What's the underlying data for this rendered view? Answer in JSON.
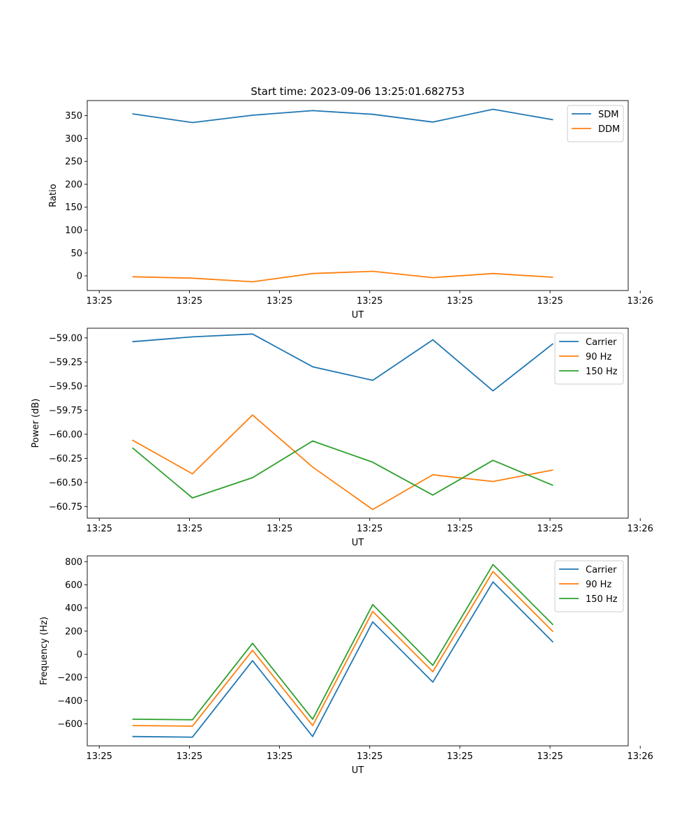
{
  "title": "Start time: 2023-09-06 13:25:01.682753",
  "colors": {
    "blue": "#1f77b4",
    "orange": "#ff7f0e",
    "green": "#2ca02c"
  },
  "chart_data": [
    {
      "type": "line",
      "title": "Start time: 2023-09-06 13:25:01.682753",
      "xlabel": "UT",
      "ylabel": "Ratio",
      "x": [
        1,
        2,
        3,
        4,
        5,
        6,
        7,
        8
      ],
      "xlim": [
        0.25,
        9.25
      ],
      "x_ticks": [
        0.45,
        1.95,
        3.45,
        4.95,
        6.45,
        7.95,
        9.45
      ],
      "x_tick_labels": [
        "13:25",
        "13:25",
        "13:25",
        "13:25",
        "13:25",
        "13:25",
        "13:26"
      ],
      "ylim": [
        -32,
        383
      ],
      "y_ticks": [
        0,
        50,
        100,
        150,
        200,
        250,
        300,
        350
      ],
      "y_tick_labels": [
        "0",
        "50",
        "100",
        "150",
        "200",
        "250",
        "300",
        "350"
      ],
      "legend": "top-right",
      "series": [
        {
          "name": "SDM",
          "color": "#1f77b4",
          "values": [
            354,
            335,
            351,
            361,
            353,
            336,
            364,
            341
          ]
        },
        {
          "name": "DDM",
          "color": "#ff7f0e",
          "values": [
            -2,
            -5,
            -13,
            5,
            10,
            -4,
            5,
            -3
          ]
        }
      ]
    },
    {
      "type": "line",
      "title": "",
      "xlabel": "UT",
      "ylabel": "Power (dB)",
      "x": [
        1,
        2,
        3,
        4,
        5,
        6,
        7,
        8
      ],
      "xlim": [
        0.25,
        9.25
      ],
      "x_ticks": [
        0.45,
        1.95,
        3.45,
        4.95,
        6.45,
        7.95,
        9.45
      ],
      "x_tick_labels": [
        "13:25",
        "13:25",
        "13:25",
        "13:25",
        "13:25",
        "13:25",
        "13:26"
      ],
      "ylim": [
        -60.87,
        -58.9
      ],
      "y_ticks": [
        -60.75,
        -60.5,
        -60.25,
        -60.0,
        -59.75,
        -59.5,
        -59.25,
        -59.0
      ],
      "y_tick_labels": [
        "−60.75",
        "−60.50",
        "−60.25",
        "−60.00",
        "−59.75",
        "−59.50",
        "−59.25",
        "−59.00"
      ],
      "legend": "top-right",
      "series": [
        {
          "name": "Carrier",
          "color": "#1f77b4",
          "values": [
            -59.04,
            -58.99,
            -58.96,
            -59.3,
            -59.44,
            -59.02,
            -59.55,
            -59.06
          ]
        },
        {
          "name": "90 Hz",
          "color": "#ff7f0e",
          "values": [
            -60.06,
            -60.41,
            -59.8,
            -60.34,
            -60.78,
            -60.42,
            -60.49,
            -60.37
          ]
        },
        {
          "name": "150 Hz",
          "color": "#2ca02c",
          "values": [
            -60.14,
            -60.66,
            -60.45,
            -60.07,
            -60.29,
            -60.63,
            -60.27,
            -60.53
          ]
        }
      ]
    },
    {
      "type": "line",
      "title": "",
      "xlabel": "UT",
      "ylabel": "Frequency (Hz)",
      "x": [
        1,
        2,
        3,
        4,
        5,
        6,
        7,
        8
      ],
      "xlim": [
        0.25,
        9.25
      ],
      "x_ticks": [
        0.45,
        1.95,
        3.45,
        4.95,
        6.45,
        7.95,
        9.45
      ],
      "x_tick_labels": [
        "13:25",
        "13:25",
        "13:25",
        "13:25",
        "13:25",
        "13:25",
        "13:26"
      ],
      "ylim": [
        -790,
        850
      ],
      "y_ticks": [
        -600,
        -400,
        -200,
        0,
        200,
        400,
        600,
        800
      ],
      "y_tick_labels": [
        "−600",
        "−400",
        "−200",
        "0",
        "200",
        "400",
        "600",
        "800"
      ],
      "legend": "top-right",
      "series": [
        {
          "name": "Carrier",
          "color": "#1f77b4",
          "values": [
            -710,
            -715,
            -55,
            -710,
            280,
            -240,
            625,
            105
          ]
        },
        {
          "name": "90 Hz",
          "color": "#ff7f0e",
          "values": [
            -615,
            -620,
            35,
            -615,
            370,
            -150,
            715,
            195
          ]
        },
        {
          "name": "150 Hz",
          "color": "#2ca02c",
          "values": [
            -560,
            -565,
            95,
            -560,
            430,
            -95,
            775,
            255
          ]
        }
      ]
    }
  ]
}
